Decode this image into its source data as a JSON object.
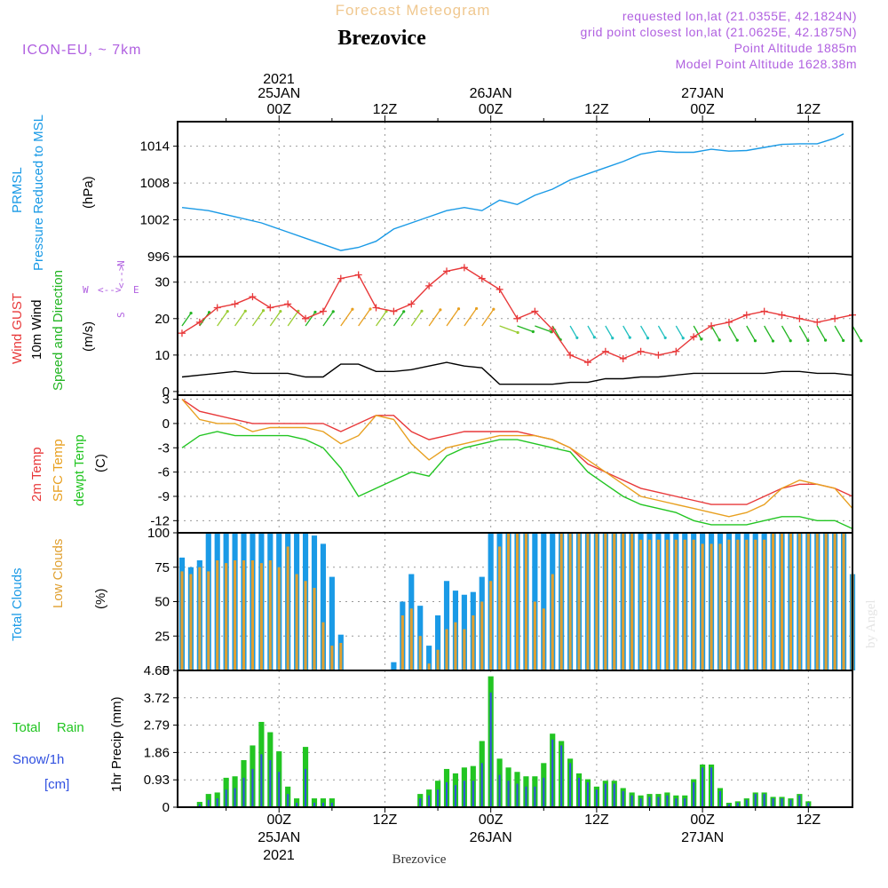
{
  "header": {
    "title": "Forecast Meteogram",
    "station": "Brezovice",
    "model": "ICON-EU, ~ 7km",
    "requested": "requested lon,lat (21.0355E, 42.1824N)",
    "grid": "grid point closest lon,lat (21.0625E, 42.1875N)",
    "point_alt": "Point Altitude 1885m",
    "model_alt": "Model Point Altitude 1628.38m",
    "credit": "by Angel",
    "footer": "Brezovice"
  },
  "time_axis": {
    "year": "2021",
    "ticks": [
      {
        "t": 0,
        "label": "00Z",
        "date": "25JAN"
      },
      {
        "t": 12,
        "label": "12Z",
        "date": ""
      },
      {
        "t": 24,
        "label": "00Z",
        "date": "26JAN"
      },
      {
        "t": 36,
        "label": "12Z",
        "date": ""
      },
      {
        "t": 48,
        "label": "00Z",
        "date": "27JAN"
      },
      {
        "t": 60,
        "label": "12Z",
        "date": ""
      }
    ],
    "range_hours": [
      -11.5,
      65
    ]
  },
  "panels": {
    "pressure": {
      "label1": "PRMSL",
      "label2": "Pressure Reduced to MSL",
      "unit": "(hPa)",
      "color": "#1a9ae6",
      "ticks": [
        "996",
        "1002",
        "1008",
        "1014"
      ]
    },
    "wind": {
      "gust_label": "Wind GUST",
      "wind_label": "10m Wind",
      "dir_label": "Speed and Direction",
      "unit": "(m/s)",
      "ticks": [
        "0",
        "10",
        "20",
        "30"
      ],
      "compass": {
        "n": "N",
        "s": "S",
        "w": "W",
        "e": "E"
      },
      "gust_color": "#e8393a",
      "wind_color": "#000000",
      "dir_color": "#22b522"
    },
    "temp": {
      "t2m_label": "2m Temp",
      "sfc_label": "SFC Temp",
      "dew_label": "dewpt Temp",
      "unit": "(C)",
      "ticks": [
        "-12",
        "-9",
        "-6",
        "-3",
        "0",
        "3"
      ],
      "t2m_color": "#e8393a",
      "sfc_color": "#e8a020",
      "dew_color": "#22c522"
    },
    "clouds": {
      "total_label": "Total Clouds",
      "low_label": "Low Clouds",
      "unit": "(%)",
      "ticks": [
        "0",
        "25",
        "50",
        "75",
        "100"
      ],
      "total_color": "#1a9ae6",
      "low_color": "#e0a030"
    },
    "precip": {
      "rain_label": "Total Rain",
      "snow_label": "Snow/1h",
      "snow_unit": "[cm]",
      "axis_label": "1hr Precip (mm)",
      "ticks": [
        "0",
        "0.93",
        "1.86",
        "2.79",
        "3.72",
        "4.65"
      ],
      "rain_color": "#22c522",
      "snow_color": "#3050e0"
    }
  },
  "chart_data": [
    {
      "type": "line",
      "title": "PRMSL Pressure Reduced to MSL",
      "ylabel": "(hPa)",
      "ylim": [
        996,
        1018
      ],
      "x_hours": [
        -11,
        -8,
        -5,
        -2,
        1,
        3,
        5,
        7,
        9,
        11,
        13,
        15,
        17,
        19,
        21,
        23,
        25,
        27,
        29,
        31,
        33,
        35,
        37,
        39,
        41,
        43,
        45,
        47,
        49,
        51,
        53,
        55,
        57,
        59,
        61,
        63,
        64
      ],
      "series": [
        {
          "name": "PRMSL",
          "values": [
            1004,
            1003.5,
            1002.5,
            1001.5,
            1000,
            999,
            998,
            997,
            997.5,
            998.5,
            1000.5,
            1001.5,
            1002.5,
            1003.5,
            1004,
            1003.5,
            1005.2,
            1004.5,
            1006,
            1007,
            1008.5,
            1009.5,
            1010.5,
            1011.5,
            1012.7,
            1013.2,
            1013,
            1013,
            1013.5,
            1013.2,
            1013.3,
            1013.8,
            1014.3,
            1014.4,
            1014.4,
            1015.3,
            1016
          ]
        }
      ]
    },
    {
      "type": "line",
      "title": "Wind GUST / 10m Wind Speed and Direction",
      "ylabel": "(m/s)",
      "ylim": [
        -1,
        37
      ],
      "x_hours": [
        -11,
        -9,
        -7,
        -5,
        -3,
        -1,
        1,
        3,
        5,
        7,
        9,
        11,
        13,
        15,
        17,
        19,
        21,
        23,
        25,
        27,
        29,
        31,
        33,
        35,
        37,
        39,
        41,
        43,
        45,
        47,
        49,
        51,
        53,
        55,
        57,
        59,
        61,
        63,
        65
      ],
      "series": [
        {
          "name": "Wind GUST",
          "values": [
            16,
            19,
            23,
            24,
            26,
            23,
            24,
            20,
            22,
            31,
            32,
            23,
            22,
            24,
            29,
            33,
            34,
            31,
            28,
            20,
            22,
            17,
            10,
            8,
            11,
            9,
            11,
            10,
            11,
            15,
            18,
            19,
            21,
            22,
            21,
            20,
            19,
            20,
            21
          ]
        },
        {
          "name": "10m Wind",
          "values": [
            4,
            4.5,
            5,
            5.5,
            5,
            5,
            5,
            4,
            4,
            7.5,
            7.5,
            5.5,
            5.5,
            6,
            7,
            8,
            7,
            6.5,
            2,
            2,
            2,
            2,
            2.5,
            2.5,
            3.5,
            3.5,
            4,
            4,
            4.5,
            5,
            5,
            5,
            5,
            5,
            5.5,
            5.5,
            5,
            5,
            4.5
          ]
        }
      ]
    },
    {
      "type": "line",
      "title": "2m Temp / SFC Temp / dewpt Temp",
      "ylabel": "(C)",
      "ylim": [
        -13.5,
        3.5
      ],
      "x_hours": [
        -11,
        -9,
        -7,
        -5,
        -3,
        -1,
        1,
        3,
        5,
        7,
        9,
        11,
        13,
        15,
        17,
        19,
        21,
        23,
        25,
        27,
        29,
        31,
        33,
        35,
        37,
        39,
        41,
        43,
        45,
        47,
        49,
        51,
        53,
        55,
        57,
        59,
        61,
        63,
        65
      ],
      "series": [
        {
          "name": "2m Temp",
          "values": [
            3,
            1.5,
            1,
            0.5,
            0,
            0,
            0,
            0,
            0,
            -1,
            0,
            1,
            1,
            -1,
            -2,
            -1.5,
            -1,
            -1,
            -1,
            -1,
            -1.5,
            -2,
            -3,
            -5,
            -6,
            -7,
            -8,
            -8.5,
            -9,
            -9.5,
            -10,
            -10,
            -10,
            -9,
            -8,
            -7.5,
            -7.5,
            -8,
            -9
          ]
        },
        {
          "name": "SFC Temp",
          "values": [
            3,
            0.5,
            0,
            0,
            -1,
            -0.5,
            -0.5,
            -0.5,
            -1,
            -2.5,
            -1.5,
            1,
            0.5,
            -2.5,
            -4.5,
            -3,
            -2.5,
            -2,
            -1.5,
            -1.5,
            -1.5,
            -2,
            -3,
            -4.5,
            -6,
            -7.5,
            -9,
            -9.5,
            -10,
            -10.5,
            -11,
            -11.5,
            -11,
            -10,
            -8,
            -7,
            -7.5,
            -8,
            -10.5
          ]
        },
        {
          "name": "dewpt Temp",
          "values": [
            -3,
            -1.5,
            -1,
            -1.5,
            -1.5,
            -1.5,
            -1.5,
            -2,
            -3,
            -5.5,
            -9,
            -8,
            -7,
            -6,
            -6.5,
            -4,
            -3,
            -2.5,
            -2,
            -2,
            -2.5,
            -3,
            -3.5,
            -6,
            -7.5,
            -9,
            -10,
            -10.5,
            -11,
            -12,
            -12.5,
            -12.5,
            -12.5,
            -12,
            -11.5,
            -11.5,
            -12,
            -12,
            -13
          ]
        }
      ]
    },
    {
      "type": "bar",
      "title": "Total Clouds / Low Clouds",
      "ylabel": "(%)",
      "ylim": [
        0,
        100
      ],
      "x_hours": [
        -11,
        -10,
        -9,
        -8,
        -7,
        -6,
        -5,
        -4,
        -3,
        -2,
        -1,
        0,
        1,
        2,
        3,
        4,
        5,
        6,
        7,
        8,
        9,
        10,
        11,
        12,
        13,
        14,
        15,
        16,
        17,
        18,
        19,
        20,
        21,
        22,
        23,
        24,
        25,
        26,
        27,
        28,
        29,
        30,
        31,
        32,
        33,
        34,
        35,
        36,
        37,
        38,
        39,
        40,
        41,
        42,
        43,
        44,
        45,
        46,
        47,
        48,
        49,
        50,
        51,
        52,
        53,
        54,
        55,
        56,
        57,
        58,
        59,
        60,
        61,
        62,
        63,
        64,
        65
      ],
      "series": [
        {
          "name": "Total Clouds",
          "values": [
            82,
            75,
            80,
            100,
            100,
            100,
            100,
            100,
            100,
            100,
            100,
            100,
            100,
            100,
            100,
            98,
            92,
            68,
            26,
            0,
            0,
            0,
            0,
            0,
            6,
            50,
            70,
            47,
            18,
            40,
            65,
            58,
            55,
            57,
            68,
            100,
            100,
            100,
            100,
            100,
            100,
            100,
            100,
            100,
            100,
            100,
            100,
            100,
            100,
            100,
            100,
            100,
            100,
            100,
            100,
            100,
            100,
            100,
            100,
            100,
            100,
            100,
            100,
            100,
            100,
            100,
            100,
            100,
            100,
            100,
            100,
            100,
            100,
            100,
            100,
            100,
            70
          ]
        },
        {
          "name": "Low Clouds",
          "values": [
            72,
            70,
            75,
            72,
            80,
            78,
            80,
            80,
            80,
            78,
            80,
            75,
            90,
            70,
            65,
            60,
            35,
            18,
            20,
            0,
            0,
            0,
            0,
            0,
            0,
            40,
            45,
            25,
            5,
            15,
            30,
            35,
            30,
            40,
            50,
            65,
            90,
            100,
            100,
            100,
            50,
            45,
            70,
            100,
            100,
            100,
            100,
            100,
            100,
            100,
            100,
            100,
            95,
            95,
            95,
            95,
            95,
            95,
            95,
            92,
            92,
            92,
            95,
            95,
            95,
            95,
            95,
            100,
            100,
            100,
            100,
            100,
            100,
            100,
            100,
            100,
            70
          ]
        }
      ]
    },
    {
      "type": "bar",
      "title": "Total Rain / Snow/1h",
      "ylabel": "1hr Precip (mm)",
      "ylim": [
        0,
        4.65
      ],
      "x_hours": [
        -9,
        -8,
        -7,
        -6,
        -5,
        -4,
        -3,
        -2,
        -1,
        0,
        1,
        2,
        3,
        4,
        5,
        6,
        16,
        17,
        18,
        19,
        20,
        21,
        22,
        23,
        24,
        25,
        26,
        27,
        28,
        29,
        30,
        31,
        32,
        33,
        34,
        35,
        36,
        37,
        38,
        39,
        40,
        41,
        42,
        43,
        44,
        45,
        46,
        47,
        48,
        49,
        50,
        51,
        52,
        53,
        54,
        55,
        56,
        57,
        58,
        59,
        60,
        61,
        62,
        63,
        64
      ],
      "series": [
        {
          "name": "Total Rain",
          "values": [
            0.18,
            0.45,
            0.5,
            1.0,
            1.05,
            1.6,
            2.1,
            2.9,
            2.55,
            1.9,
            0.7,
            0.3,
            2.05,
            0.3,
            0.3,
            0.3,
            0.45,
            0.6,
            0.9,
            1.3,
            1.15,
            1.35,
            1.4,
            2.25,
            4.45,
            1.65,
            1.35,
            1.2,
            1.05,
            1.05,
            1.5,
            2.5,
            2.25,
            1.65,
            1.15,
            0.95,
            0.7,
            0.9,
            0.9,
            0.65,
            0.5,
            0.4,
            0.45,
            0.45,
            0.5,
            0.4,
            0.4,
            0.95,
            1.45,
            1.45,
            0.65,
            0.15,
            0.2,
            0.3,
            0.5,
            0.5,
            0.35,
            0.35,
            0.3,
            0.45,
            0.2,
            0,
            0,
            0,
            0
          ]
        },
        {
          "name": "Snow/1h",
          "values": [
            0.1,
            0.25,
            0.3,
            0.6,
            0.65,
            1.0,
            1.3,
            1.8,
            1.6,
            1.2,
            0.45,
            0.15,
            1.3,
            0.15,
            0.15,
            0.15,
            0.3,
            0.4,
            0.6,
            0.85,
            0.75,
            0.9,
            0.9,
            1.5,
            3.9,
            1.1,
            0.9,
            0.8,
            0.7,
            0.7,
            1.0,
            2.3,
            2.1,
            1.5,
            1.0,
            0.85,
            0.6,
            0.8,
            0.8,
            0.55,
            0.4,
            0.3,
            0.35,
            0.35,
            0.4,
            0.3,
            0.3,
            0.85,
            1.35,
            1.35,
            0.55,
            0.1,
            0.15,
            0.25,
            0.45,
            0.45,
            0.3,
            0.3,
            0.25,
            0.4,
            0.15,
            0,
            0,
            0,
            0
          ]
        }
      ]
    }
  ]
}
